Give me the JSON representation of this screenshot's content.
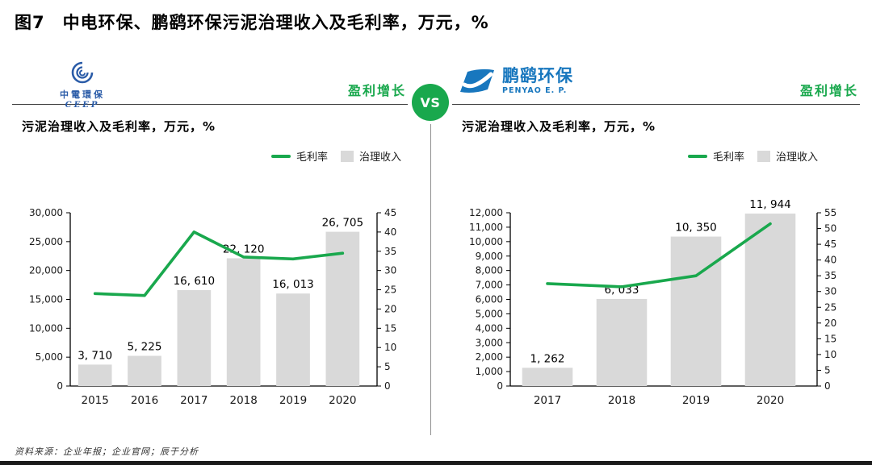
{
  "title": "图7　中电环保、鹏鹞环保污泥治理收入及毛利率，万元，%",
  "vs_label": "VS",
  "source": "资料来源：企业年报；企业官网；辰于分析",
  "colors": {
    "accent_green": "#19A84D",
    "bar_gray": "#D9D9D9",
    "ceep_blue": "#2B5CA8",
    "penyao_blue": "#1877BE"
  },
  "legend": {
    "line_label": "毛利率",
    "bar_label": "治理收入"
  },
  "panels": [
    {
      "logo": {
        "name": "中電環保",
        "sub": "CEEP"
      },
      "tag": "盈利增长",
      "chart_title": "污泥治理收入及毛利率，万元，%"
    },
    {
      "logo": {
        "name": "鹏鹞环保",
        "sub": "PENYAO E. P."
      },
      "tag": "盈利增长",
      "chart_title": "污泥治理收入及毛利率，万元，%"
    }
  ],
  "chart_data": [
    {
      "type": "bar",
      "company": "中电环保",
      "title": "污泥治理收入及毛利率，万元，%",
      "legend_position": "top-right",
      "grid": false,
      "categories": [
        "2015",
        "2016",
        "2017",
        "2018",
        "2019",
        "2020"
      ],
      "series": [
        {
          "name": "治理收入",
          "type": "bar",
          "axis": "left",
          "values": [
            3710,
            5225,
            16610,
            22120,
            16013,
            26705
          ],
          "labels": [
            "3, 710",
            "5, 225",
            "16, 610",
            "22, 120",
            "16, 013",
            "26, 705"
          ]
        },
        {
          "name": "毛利率",
          "type": "line",
          "axis": "right",
          "values": [
            24,
            23.5,
            40,
            33.5,
            33,
            34.5
          ]
        }
      ],
      "left_axis": {
        "min": 0,
        "max": 30000,
        "step": 5000,
        "ticks": [
          "0",
          "5,000",
          "10,000",
          "15,000",
          "20,000",
          "25,000",
          "30,000"
        ]
      },
      "right_axis": {
        "min": 0,
        "max": 45,
        "step": 5,
        "ticks": [
          "0",
          "5",
          "10",
          "15",
          "20",
          "25",
          "30",
          "35",
          "40",
          "45"
        ]
      }
    },
    {
      "type": "bar",
      "company": "鹏鹞环保",
      "title": "污泥治理收入及毛利率，万元，%",
      "legend_position": "top-right",
      "grid": false,
      "categories": [
        "2017",
        "2018",
        "2019",
        "2020"
      ],
      "series": [
        {
          "name": "治理收入",
          "type": "bar",
          "axis": "left",
          "values": [
            1262,
            6033,
            10350,
            11944
          ],
          "labels": [
            "1, 262",
            "6, 033",
            "10, 350",
            "11, 944"
          ]
        },
        {
          "name": "毛利率",
          "type": "line",
          "axis": "right",
          "values": [
            32.5,
            31.5,
            35,
            51.5
          ]
        }
      ],
      "left_axis": {
        "min": 0,
        "max": 12000,
        "step": 1000,
        "ticks": [
          "0",
          "1,000",
          "2,000",
          "3,000",
          "4,000",
          "5,000",
          "6,000",
          "7,000",
          "8,000",
          "9,000",
          "10,000",
          "11,000",
          "12,000"
        ]
      },
      "right_axis": {
        "min": 0,
        "max": 55,
        "step": 5,
        "ticks": [
          "0",
          "5",
          "10",
          "15",
          "20",
          "25",
          "30",
          "35",
          "40",
          "45",
          "50",
          "55"
        ]
      }
    }
  ]
}
